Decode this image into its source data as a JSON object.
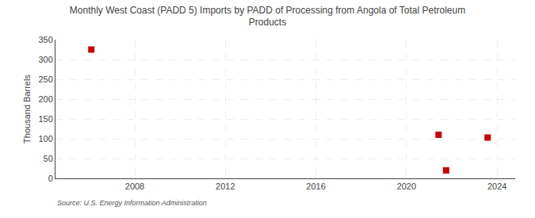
{
  "chart_data": {
    "type": "scatter",
    "title": "Monthly West Coast (PADD 5) Imports by PADD of Processing from Angola of Total Petroleum\nProducts",
    "ylabel": "Thousand Barrels",
    "source": "Source: U.S. Energy Information Administration",
    "x": [
      2006.083,
      2021.417,
      2021.75,
      2023.583
    ],
    "values": [
      325,
      110,
      20,
      103
    ],
    "color": "#cc0000",
    "marker": "square",
    "xlim": [
      2004.5,
      2024.8
    ],
    "xticks": [
      2008,
      2012,
      2016,
      2020,
      2024
    ],
    "ylim": [
      0,
      350
    ],
    "yticks": [
      0,
      50,
      100,
      150,
      200,
      250,
      300,
      350
    ],
    "grid": true
  }
}
